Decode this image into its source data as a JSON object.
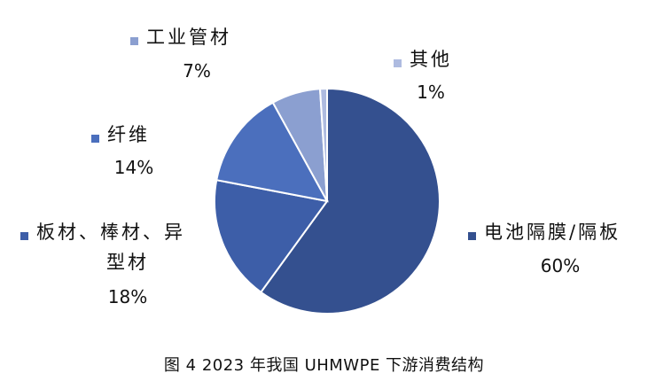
{
  "chart_data": {
    "type": "pie",
    "title": "",
    "slices": [
      {
        "label_lines": [
          "电池隔膜/隔板"
        ],
        "value": 60,
        "value_label": "60%",
        "color": "#34508f",
        "marker_color": "#34508f"
      },
      {
        "label_lines": [
          "板材、棒材、异",
          "型材"
        ],
        "value": 18,
        "value_label": "18%",
        "color": "#3d5ea8",
        "marker_color": "#3d5ea8"
      },
      {
        "label_lines": [
          "纤维"
        ],
        "value": 14,
        "value_label": "14%",
        "color": "#4b6fbd",
        "marker_color": "#4b6fbd"
      },
      {
        "label_lines": [
          "工业管材"
        ],
        "value": 7,
        "value_label": "7%",
        "color": "#8b9fd0",
        "marker_color": "#8b9fd0"
      },
      {
        "label_lines": [
          "其他"
        ],
        "value": 1,
        "value_label": "1%",
        "color": "#aebbe0",
        "marker_color": "#aebbe0"
      }
    ],
    "legend": "labels-beside-slices"
  },
  "caption": "图 4  2023 年我国 UHMWPE 下游消费结构"
}
